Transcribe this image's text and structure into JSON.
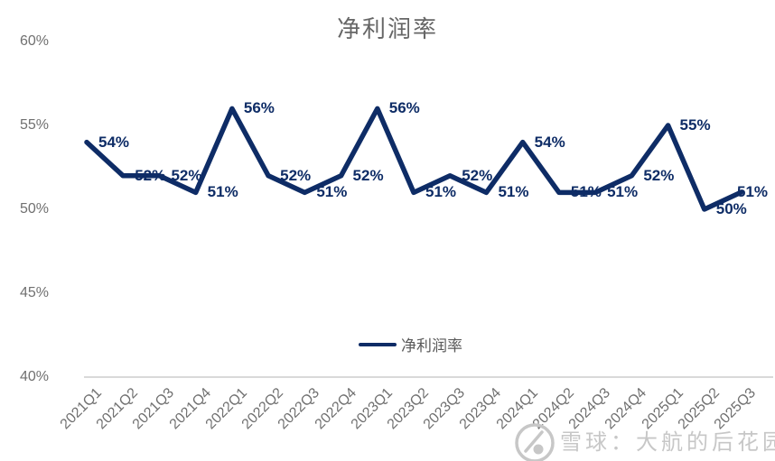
{
  "chart_data": {
    "type": "line",
    "title": "净利润率",
    "categories": [
      "2021Q1",
      "2021Q2",
      "2021Q3",
      "2021Q4",
      "2022Q1",
      "2022Q2",
      "2022Q3",
      "2022Q4",
      "2023Q1",
      "2023Q2",
      "2023Q3",
      "2023Q4",
      "2024Q1",
      "2024Q2",
      "2024Q3",
      "2024Q4",
      "2025Q1",
      "2025Q2",
      "2025Q3"
    ],
    "series": [
      {
        "name": "净利润率",
        "values": [
          54,
          52,
          52,
          51,
          56,
          52,
          51,
          52,
          56,
          51,
          52,
          51,
          54,
          51,
          51,
          52,
          55,
          50,
          51
        ],
        "point_labels": [
          "54%",
          "52%",
          "52%",
          "51%",
          "56%",
          "52%",
          "51%",
          "52%",
          "56%",
          "51%",
          "52%",
          "51%",
          "54%",
          "51%",
          "51%",
          "52%",
          "55%",
          "50%",
          "51%"
        ]
      }
    ],
    "xlabel": "",
    "ylabel": "",
    "ylim": [
      40,
      60
    ],
    "y_ticks": [
      "60%",
      "55%",
      "50%",
      "45%",
      "40%"
    ],
    "y_tick_values": [
      60,
      55,
      50,
      45,
      40
    ],
    "grid": "off",
    "legend": {
      "label": "净利润率",
      "position": "bottom-center"
    },
    "colors": {
      "line": "#0e2c66",
      "point_label": "#0e2c66",
      "title": "#666666",
      "axis_text": "#707070",
      "axis_line": "#d9d9d9"
    }
  },
  "watermark": {
    "icon": "xueqiu-snowball-icon",
    "text": "雪球：大航的后花园",
    "color": "#c7c7c7"
  }
}
